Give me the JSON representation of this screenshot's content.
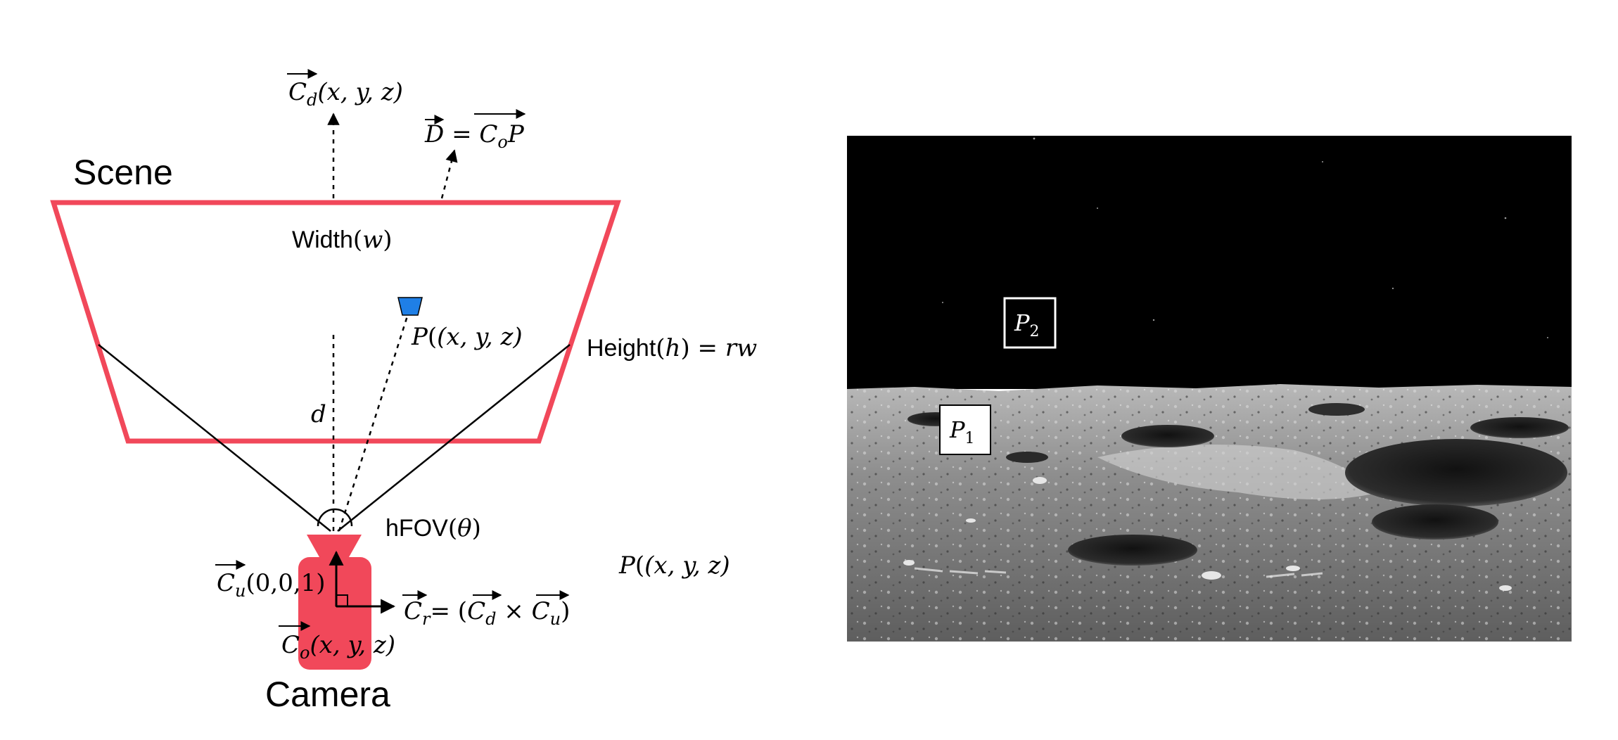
{
  "diagram": {
    "scene_label": "Scene",
    "camera_label": "Camera",
    "width_label": {
      "text": "Width",
      "var": "w"
    },
    "height_label": {
      "text": "Height",
      "var": "h",
      "rhs": "rw"
    },
    "hfov_label": {
      "text": "hFOV",
      "var": "θ"
    },
    "distance_label": "d",
    "camera_forward_vector": {
      "name": "C",
      "sub": "d",
      "args": "(x, y, z)"
    },
    "direction_vector": {
      "lhs": "D",
      "rhs_name": "C",
      "rhs_sub": "o",
      "rhs_tail": "P"
    },
    "point_label": {
      "name": "P",
      "args": "(x, y, z)"
    },
    "camera_up_vector": {
      "name": "C",
      "sub": "u",
      "args": "(0,0,1)"
    },
    "camera_origin_vector": {
      "name": "C",
      "sub": "o",
      "args": "(x, y, z)"
    },
    "camera_right_vector": {
      "name": "C",
      "sub": "r",
      "equals": "= (",
      "a_sub": "d",
      "cross": "×",
      "b_sub": "u",
      "close": ")"
    },
    "loose_point_label": {
      "name": "P",
      "args": "(x, y, z)"
    }
  },
  "photo": {
    "description_markers": [
      {
        "name": "P",
        "sub": "2"
      },
      {
        "name": "P",
        "sub": "1"
      }
    ]
  },
  "colors": {
    "scene_frame": "#f1485a",
    "camera_body": "#f1485a",
    "point_marker": "#1f7fe6",
    "sky": "#000000",
    "stroke": "#000000"
  }
}
